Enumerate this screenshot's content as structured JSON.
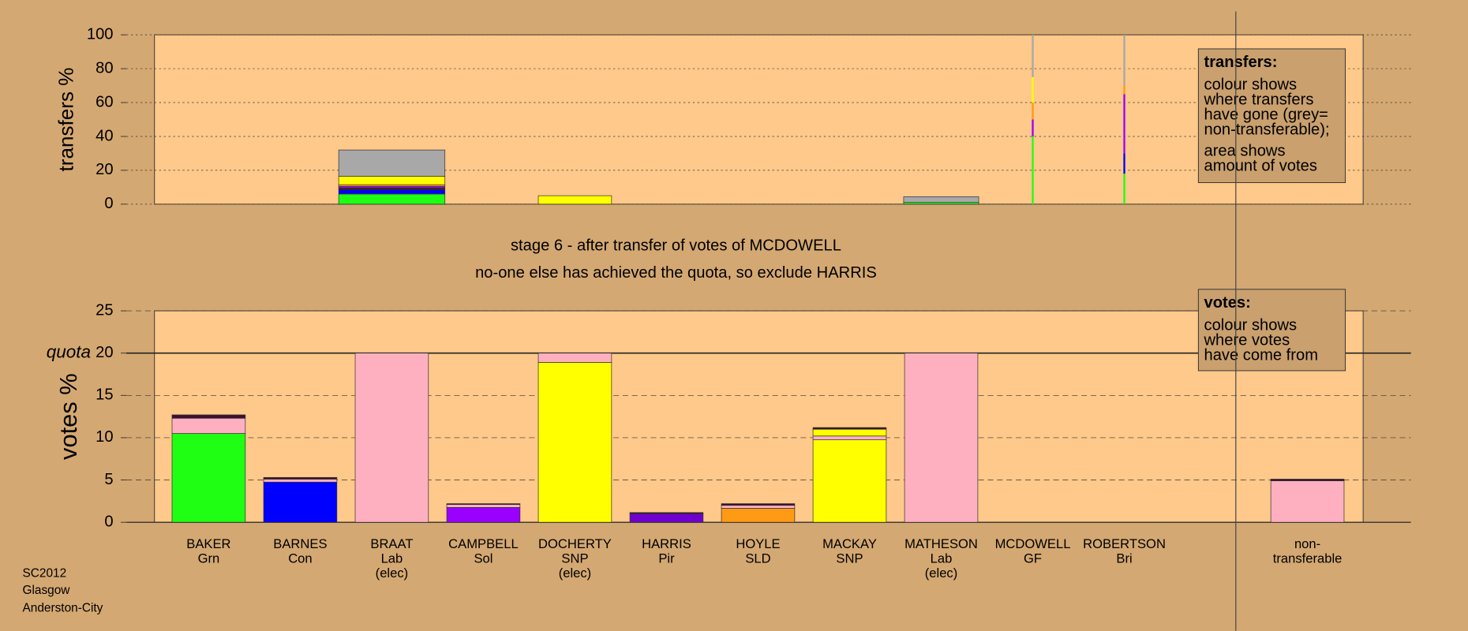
{
  "footer": {
    "lines": [
      "SC2012",
      "Glasgow",
      "Anderston-City"
    ]
  },
  "stage": {
    "title": "stage 6 - after transfer of votes of MCDOWELL",
    "subtitle": "no-one else has achieved the quota, so exclude HARRIS"
  },
  "chart_data": [
    {
      "type": "bar",
      "stacked": true,
      "y_label": "transfers %",
      "ylim": [
        0,
        100
      ],
      "yticks": [
        0,
        20,
        40,
        60,
        80,
        100
      ],
      "grid": true,
      "box": {
        "title": "transfers:",
        "paragraphs": [
          [
            "colour shows",
            "where transfers",
            "have gone (grey=",
            "non-transferable);"
          ],
          [
            "area shows",
            "amount of votes"
          ]
        ]
      },
      "widths": [
        null,
        null,
        1.16,
        null,
        0.8,
        null,
        null,
        null,
        0.82,
        0.02,
        0.02,
        null,
        null
      ],
      "series": [
        {
          "color": "#1eff14",
          "values": [
            null,
            null,
            6,
            null,
            null,
            null,
            null,
            null,
            1,
            40,
            18,
            null,
            null
          ]
        },
        {
          "color": "#0000ff",
          "values": [
            null,
            null,
            2.5,
            null,
            null,
            null,
            null,
            null,
            null,
            null,
            12,
            null,
            null
          ]
        },
        {
          "color": "#3a1030",
          "values": [
            null,
            null,
            1,
            null,
            null,
            null,
            null,
            null,
            null,
            null,
            null,
            null,
            null
          ]
        },
        {
          "color": "#9a00ff",
          "values": [
            null,
            null,
            1,
            null,
            null,
            null,
            null,
            null,
            null,
            10,
            35,
            null,
            null
          ]
        },
        {
          "color": "#ff9a14",
          "values": [
            null,
            null,
            1,
            null,
            null,
            null,
            null,
            null,
            null,
            10,
            5,
            null,
            null
          ]
        },
        {
          "color": "#ffff00",
          "values": [
            null,
            null,
            5,
            null,
            5,
            null,
            null,
            null,
            null,
            15,
            null,
            null,
            null
          ]
        },
        {
          "color": "#a8a8a8",
          "values": [
            null,
            null,
            15.5,
            null,
            null,
            null,
            null,
            null,
            3.4,
            25,
            30,
            null,
            null
          ]
        }
      ]
    },
    {
      "type": "bar",
      "stacked": true,
      "y_label": "votes %",
      "categories": [
        [
          "BAKER",
          "Grn"
        ],
        [
          "BARNES",
          "Con"
        ],
        [
          "BRAAT",
          "Lab",
          "(elec)"
        ],
        [
          "CAMPBELL",
          "Sol"
        ],
        [
          "DOCHERTY",
          "SNP",
          "(elec)"
        ],
        [
          "HARRIS",
          "Pir"
        ],
        [
          "HOYLE",
          "SLD"
        ],
        [
          "MACKAY",
          "SNP"
        ],
        [
          "MATHESON",
          "Lab",
          "(elec)"
        ],
        [
          "MCDOWELL",
          "GF"
        ],
        [
          "ROBERTSON",
          "Bri"
        ],
        null,
        [
          "non-",
          "transferable"
        ]
      ],
      "ylim": [
        0,
        25
      ],
      "yticks": [
        0,
        5,
        10,
        15,
        20,
        25
      ],
      "grid": true,
      "quota": {
        "value": 20,
        "label": "quota"
      },
      "box": {
        "title": "votes:",
        "paragraphs": [
          [
            "colour shows",
            "where votes",
            "have come from"
          ]
        ]
      },
      "series": [
        {
          "color": "#1eff14",
          "values": [
            10.5,
            null,
            null,
            null,
            null,
            null,
            null,
            null,
            null,
            null,
            null,
            null,
            null
          ]
        },
        {
          "color": "#0000ff",
          "values": [
            null,
            4.75,
            null,
            null,
            null,
            null,
            null,
            null,
            null,
            null,
            null,
            null,
            null
          ]
        },
        {
          "color": "#9a00ff",
          "values": [
            null,
            null,
            null,
            1.75,
            null,
            null,
            null,
            null,
            null,
            null,
            null,
            null,
            null
          ]
        },
        {
          "color": "#7000d0",
          "values": [
            null,
            null,
            null,
            null,
            null,
            1,
            null,
            null,
            null,
            null,
            null,
            null,
            null
          ]
        },
        {
          "color": "#ff9a14",
          "values": [
            null,
            null,
            null,
            null,
            null,
            null,
            1.65,
            null,
            null,
            null,
            null,
            null,
            null
          ]
        },
        {
          "color": "#ffff00",
          "values": [
            null,
            null,
            null,
            null,
            18.9,
            null,
            null,
            9.75,
            null,
            null,
            null,
            null,
            null
          ]
        },
        {
          "color": "#ffb0c0",
          "values": [
            1.8,
            0.35,
            20,
            0.35,
            1.1,
            null,
            0.35,
            0.45,
            20,
            null,
            null,
            null,
            4.9
          ]
        },
        {
          "color": "#ffff00",
          "values": [
            null,
            null,
            null,
            null,
            null,
            null,
            null,
            0.8,
            null,
            null,
            null,
            null,
            null
          ]
        },
        {
          "color": "#3a1030",
          "values": [
            0.4,
            0.2,
            null,
            0.1,
            null,
            0.15,
            0.2,
            0.2,
            null,
            null,
            null,
            null,
            0.2
          ]
        }
      ]
    }
  ]
}
